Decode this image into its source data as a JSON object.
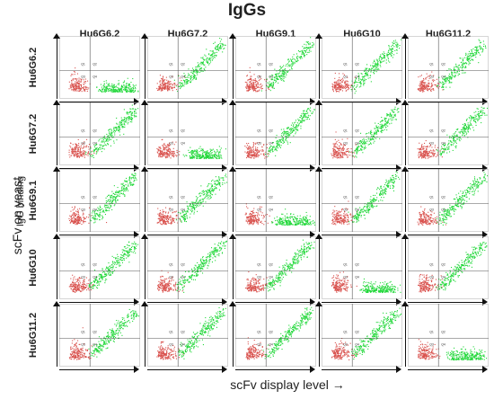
{
  "figure": {
    "title": "IgGs",
    "y_axis_label": "scFv on yeast",
    "y_axis_sublabel": "IgG binding →",
    "x_axis_label": "scFv display level →",
    "columns": [
      "Hu6G6.2",
      "Hu6G7.2",
      "Hu6G9.1",
      "Hu6G10",
      "Hu6G11.2"
    ],
    "rows": [
      "Hu6G6.2",
      "Hu6G7.2",
      "Hu6G9.1",
      "Hu6G10",
      "Hu6G11.2"
    ],
    "quadrant_labels": [
      "Q1",
      "Q2",
      "Q3",
      "Q4"
    ],
    "colors": {
      "negative": "#d9534f",
      "positive": "#22d83a",
      "axis": "#111111",
      "gate": "#555555"
    }
  }
}
